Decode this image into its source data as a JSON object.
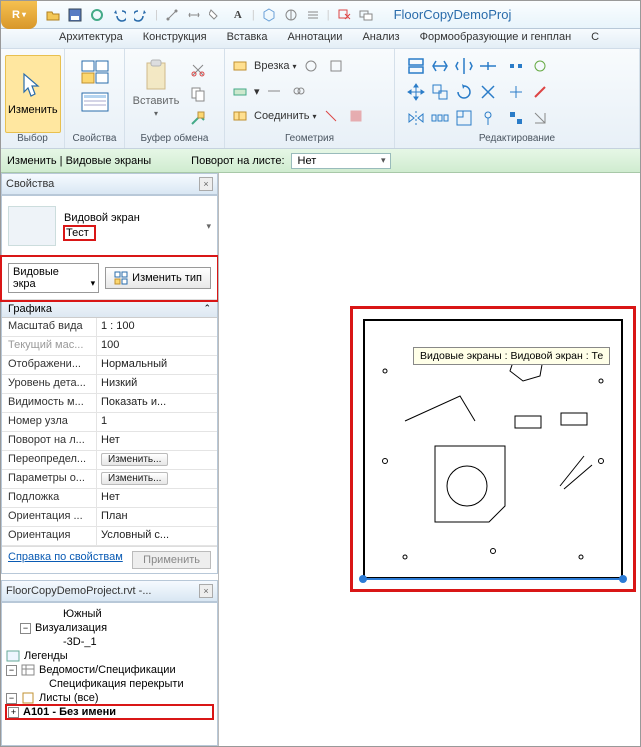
{
  "app": {
    "letter": "R",
    "title": "FloorCopyDemoProj"
  },
  "menu": [
    "Архитектура",
    "Конструкция",
    "Вставка",
    "Аннотации",
    "Анализ",
    "Формообразующие и генплан",
    "С"
  ],
  "ribbon": {
    "modify": "Изменить",
    "sel_group": "Выбор",
    "props_group": "Свойства",
    "paste": "Вставить",
    "clipboard": "Буфер обмена",
    "cut": "Врезка",
    "join": "Соединить",
    "geometry": "Геометрия",
    "editing": "Редактирование"
  },
  "options": {
    "context": "Изменить | Видовые экраны",
    "rotate_label": "Поворот на листе:",
    "rotate_value": "Нет"
  },
  "props": {
    "title": "Свойства",
    "family": "Видовой экран",
    "type": "Тест",
    "selector": "Видовые экра",
    "edit_type": "Изменить тип",
    "section": "Графика",
    "rows": [
      {
        "k": "Масштаб вида",
        "v": "1 : 100"
      },
      {
        "k": "Текущий мас...",
        "v": "100",
        "dim": true
      },
      {
        "k": "Отображени...",
        "v": "Нормальный"
      },
      {
        "k": "Уровень дета...",
        "v": "Низкий"
      },
      {
        "k": "Видимость м...",
        "v": "Показать и..."
      },
      {
        "k": "Номер узла",
        "v": "1"
      },
      {
        "k": "Поворот на л...",
        "v": "Нет"
      },
      {
        "k": "Переопредел...",
        "v": "Изменить...",
        "btn": true
      },
      {
        "k": "Параметры о...",
        "v": "Изменить...",
        "btn": true
      },
      {
        "k": "Подложка",
        "v": "Нет"
      },
      {
        "k": "Ориентация ...",
        "v": "План"
      },
      {
        "k": "Ориентация",
        "v": "Условный с..."
      }
    ],
    "help": "Справка по свойствам",
    "apply": "Применить"
  },
  "browser": {
    "title": "FloorCopyDemoProject.rvt -...",
    "nodes": {
      "south": "Южный",
      "visual": "Визуализация",
      "threeD": "-3D-_1",
      "legends": "Легенды",
      "schedules": "Ведомости/Спецификации",
      "slab_sched": "Спецификация перекрыти",
      "sheets": "Листы (все)",
      "sheet1": "A101 - Без имени"
    }
  },
  "tooltip": "Видовые экраны : Видовой экран : Те",
  "colors": {
    "red": "#d91616",
    "blue": "#2b7bd6"
  }
}
